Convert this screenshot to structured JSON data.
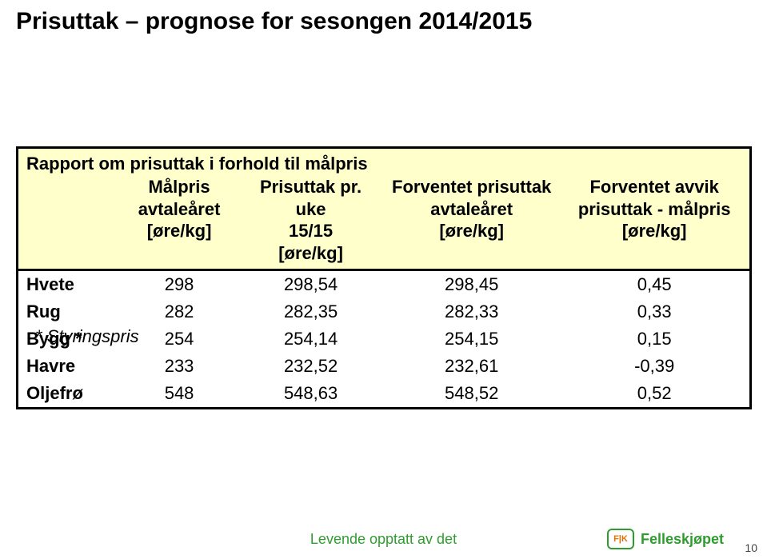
{
  "title": "Prisuttak – prognose for sesongen 2014/2015",
  "report_header": "Rapport om prisuttak i forhold til målpris",
  "columns": {
    "c1": {
      "l1": "",
      "l2": "",
      "l3": ""
    },
    "c2": {
      "l1": "Målpris",
      "l2": "avtaleåret",
      "l3": "[øre/kg]"
    },
    "c3": {
      "l1": "Prisuttak pr. uke",
      "l2": "15/15",
      "l3": "[øre/kg]"
    },
    "c4": {
      "l1": "Forventet prisuttak",
      "l2": "avtaleåret",
      "l3": "[øre/kg]"
    },
    "c5": {
      "l1": "Forventet avvik",
      "l2": "prisuttak - målpris",
      "l3": "[øre/kg]"
    }
  },
  "rows": [
    {
      "label": "Hvete",
      "v1": "298",
      "v2": "298,54",
      "v3": "298,45",
      "v4": "0,45"
    },
    {
      "label": "Rug",
      "v1": "282",
      "v2": "282,35",
      "v3": "282,33",
      "v4": "0,33"
    },
    {
      "label": "Bygg *",
      "v1": "254",
      "v2": "254,14",
      "v3": "254,15",
      "v4": "0,15"
    },
    {
      "label": "Havre",
      "v1": "233",
      "v2": "232,52",
      "v3": "232,61",
      "v4": "-0,39"
    },
    {
      "label": "Oljefrø",
      "v1": "548",
      "v2": "548,63",
      "v3": "548,52",
      "v4": "0,52"
    }
  ],
  "footnote": "* Styringspris",
  "footer_text": "Levende opptatt av det",
  "logo_badge": "F|K",
  "logo_text": "Felleskjøpet",
  "page_number": "10",
  "colors": {
    "header_bg": "#ffffcc",
    "green": "#2f9c2f"
  }
}
